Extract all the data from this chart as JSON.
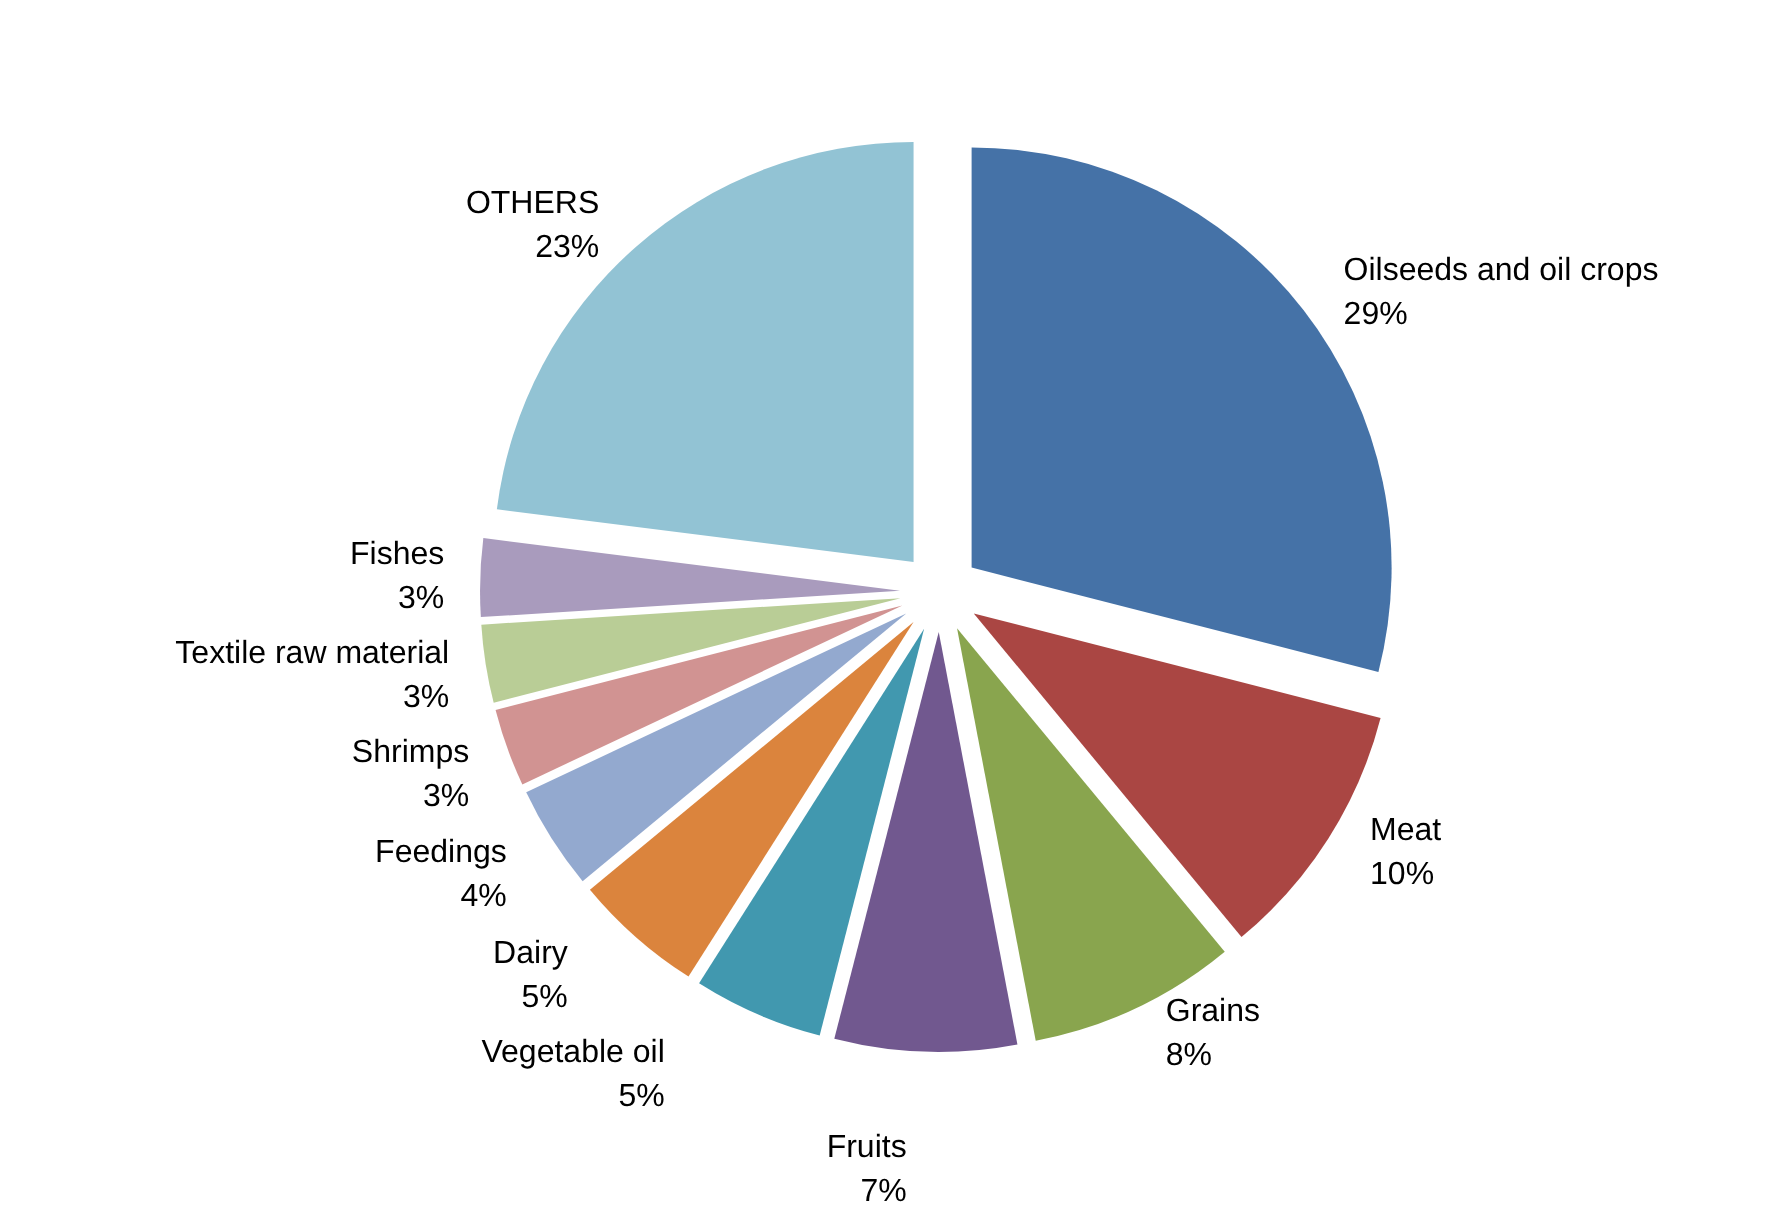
{
  "chart_data": {
    "type": "pie",
    "categories": [
      "Oilseeds and oil crops",
      "Meat",
      "Grains",
      "Fruits",
      "Vegetable oil",
      "Dairy",
      "Feedings",
      "Shrimps",
      "Textile raw material",
      "Fishes",
      "OTHERS"
    ],
    "values": [
      29,
      10,
      8,
      7,
      5,
      5,
      4,
      3,
      3,
      3,
      23
    ],
    "value_labels": [
      "29%",
      "10%",
      "8%",
      "7%",
      "5%",
      "5%",
      "4%",
      "3%",
      "3%",
      "3%",
      "23%"
    ],
    "colors": [
      "#4572a7",
      "#aa4643",
      "#89a54e",
      "#71588f",
      "#4198af",
      "#db843d",
      "#93a9cf",
      "#d19392",
      "#b9cd96",
      "#a99bbd",
      "#92c3d4"
    ],
    "legend": false
  }
}
